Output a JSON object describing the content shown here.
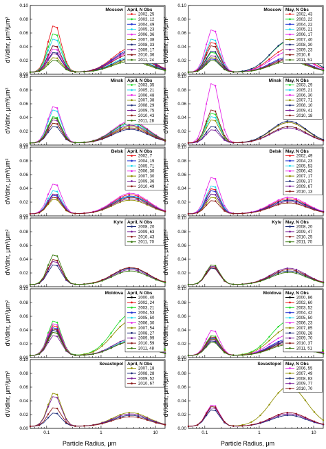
{
  "axes": {
    "ylabel": "dV/dlnr, μm³/μm²",
    "xlabel": "Particle Radius, μm",
    "xticks": [
      "0.1",
      "1",
      "10"
    ],
    "yticks": [
      "0.00",
      "0.02",
      "0.04",
      "0.06",
      "0.08",
      "0.10"
    ]
  },
  "colors": {
    "2000": "#000000",
    "2002": "#e8161b",
    "2003": "#1fdb2a",
    "2004": "#1f2fd1",
    "2005": "#1fd8ec",
    "2006": "#e628e8",
    "2007": "#8f8f00",
    "2008": "#1c2a78",
    "2009": "#7a1e96",
    "2010": "#8b1a1a",
    "2011": "#3a7a10"
  },
  "chart_data": [
    {
      "type": "line",
      "city": "Moscow",
      "legend_title": "April, N Obs",
      "xscale": "log",
      "xlim": [
        0.05,
        15
      ],
      "ylim": [
        0,
        0.1
      ],
      "series": [
        {
          "name": "2002, 25",
          "peak_fine": 0.07,
          "peak_coarse": 0.035
        },
        {
          "name": "2003, 12",
          "peak_fine": 0.058,
          "peak_coarse": 0.03
        },
        {
          "name": "2004, 49",
          "peak_fine": 0.04,
          "peak_coarse": 0.032
        },
        {
          "name": "2005, 23",
          "peak_fine": 0.05,
          "peak_coarse": 0.022
        },
        {
          "name": "2006, 36",
          "peak_fine": 0.035,
          "peak_coarse": 0.028
        },
        {
          "name": "2007, 38",
          "peak_fine": 0.022,
          "peak_coarse": 0.018
        },
        {
          "name": "2008, 33",
          "peak_fine": 0.03,
          "peak_coarse": 0.02
        },
        {
          "name": "2009, 17",
          "peak_fine": 0.028,
          "peak_coarse": 0.03
        },
        {
          "name": "2010, 36",
          "peak_fine": 0.04,
          "peak_coarse": 0.026
        },
        {
          "name": "2011, 24",
          "peak_fine": 0.018,
          "peak_coarse": 0.016
        }
      ]
    },
    {
      "type": "line",
      "city": "Moscow",
      "legend_title": "May, N Obs",
      "xscale": "log",
      "xlim": [
        0.05,
        15
      ],
      "ylim": [
        0,
        0.1
      ],
      "series": [
        {
          "name": "2002, 43",
          "peak_fine": 0.045,
          "peak_coarse": 0.035
        },
        {
          "name": "2003, 22",
          "peak_fine": 0.03,
          "peak_coarse": 0.045
        },
        {
          "name": "2004, 22",
          "peak_fine": 0.02,
          "peak_coarse": 0.022
        },
        {
          "name": "2005, 21",
          "peak_fine": 0.05,
          "peak_coarse": 0.02
        },
        {
          "name": "2006, 17",
          "peak_fine": 0.064,
          "peak_coarse": 0.03
        },
        {
          "name": "2007, 40",
          "peak_fine": 0.022,
          "peak_coarse": 0.02
        },
        {
          "name": "2008, 30",
          "peak_fine": 0.032,
          "peak_coarse": 0.046
        },
        {
          "name": "2009, 23",
          "peak_fine": 0.025,
          "peak_coarse": 0.02
        },
        {
          "name": "2010, 6",
          "peak_fine": 0.04,
          "peak_coarse": 0.018
        },
        {
          "name": "2011, 51",
          "peak_fine": 0.018,
          "peak_coarse": 0.016
        }
      ]
    },
    {
      "type": "line",
      "city": "Minsk",
      "legend_title": "April, N Obs",
      "xscale": "log",
      "xlim": [
        0.05,
        15
      ],
      "ylim": [
        0,
        0.1
      ],
      "series": [
        {
          "name": "2003, 35",
          "peak_fine": 0.04,
          "peak_coarse": 0.03
        },
        {
          "name": "2005, 21",
          "peak_fine": 0.05,
          "peak_coarse": 0.028
        },
        {
          "name": "2006, 48",
          "peak_fine": 0.055,
          "peak_coarse": 0.032
        },
        {
          "name": "2007, 38",
          "peak_fine": 0.03,
          "peak_coarse": 0.024
        },
        {
          "name": "2008, 29",
          "peak_fine": 0.025,
          "peak_coarse": 0.02
        },
        {
          "name": "2009, 75",
          "peak_fine": 0.035,
          "peak_coarse": 0.026
        },
        {
          "name": "2010, 43",
          "peak_fine": 0.03,
          "peak_coarse": 0.022
        },
        {
          "name": "2011, 28",
          "peak_fine": 0.038,
          "peak_coarse": 0.03
        }
      ]
    },
    {
      "type": "line",
      "city": "Minsk",
      "legend_title": "May, N Obs",
      "xscale": "log",
      "xlim": [
        0.05,
        15
      ],
      "ylim": [
        0,
        0.1
      ],
      "series": [
        {
          "name": "2003, 29",
          "peak_fine": 0.045,
          "peak_coarse": 0.03
        },
        {
          "name": "2005, 21",
          "peak_fine": 0.04,
          "peak_coarse": 0.024
        },
        {
          "name": "2006, 30",
          "peak_fine": 0.09,
          "peak_coarse": 0.03
        },
        {
          "name": "2007, 71",
          "peak_fine": 0.035,
          "peak_coarse": 0.03
        },
        {
          "name": "2008, 10",
          "peak_fine": 0.025,
          "peak_coarse": 0.032
        },
        {
          "name": "2009, 41",
          "peak_fine": 0.02,
          "peak_coarse": 0.022
        },
        {
          "name": "2010, 18",
          "peak_fine": 0.05,
          "peak_coarse": 0.024
        }
      ]
    },
    {
      "type": "line",
      "city": "Belsk",
      "legend_title": "April, N Obs",
      "xscale": "log",
      "xlim": [
        0.05,
        15
      ],
      "ylim": [
        0,
        0.1
      ],
      "series": [
        {
          "name": "2002, 7",
          "peak_fine": 0.03,
          "peak_coarse": 0.028
        },
        {
          "name": "2004, 19",
          "peak_fine": 0.028,
          "peak_coarse": 0.026
        },
        {
          "name": "2005, 71",
          "peak_fine": 0.035,
          "peak_coarse": 0.025
        },
        {
          "name": "2006, 30",
          "peak_fine": 0.045,
          "peak_coarse": 0.03
        },
        {
          "name": "2007, 30",
          "peak_fine": 0.022,
          "peak_coarse": 0.02
        },
        {
          "name": "2009, 36",
          "peak_fine": 0.03,
          "peak_coarse": 0.022
        },
        {
          "name": "2010, 49",
          "peak_fine": 0.025,
          "peak_coarse": 0.024
        }
      ]
    },
    {
      "type": "line",
      "city": "Belsk",
      "legend_title": "May, N Obs",
      "xscale": "log",
      "xlim": [
        0.05,
        15
      ],
      "ylim": [
        0,
        0.1
      ],
      "series": [
        {
          "name": "2002, 49",
          "peak_fine": 0.038,
          "peak_coarse": 0.022
        },
        {
          "name": "2004, 23",
          "peak_fine": 0.035,
          "peak_coarse": 0.02
        },
        {
          "name": "2005, 53",
          "peak_fine": 0.042,
          "peak_coarse": 0.02
        },
        {
          "name": "2006, 43",
          "peak_fine": 0.055,
          "peak_coarse": 0.024
        },
        {
          "name": "2007, 17",
          "peak_fine": 0.025,
          "peak_coarse": 0.016
        },
        {
          "name": "2008, 37",
          "peak_fine": 0.03,
          "peak_coarse": 0.02
        },
        {
          "name": "2009, 67",
          "peak_fine": 0.03,
          "peak_coarse": 0.018
        },
        {
          "name": "2010, 13",
          "peak_fine": 0.02,
          "peak_coarse": 0.016
        }
      ]
    },
    {
      "type": "line",
      "city": "Kyiv",
      "legend_title": "April, N Obs",
      "xscale": "log",
      "xlim": [
        0.05,
        15
      ],
      "ylim": [
        0,
        0.1
      ],
      "series": [
        {
          "name": "2008, 20",
          "peak_fine": 0.03,
          "peak_coarse": 0.024
        },
        {
          "name": "2009, 63",
          "peak_fine": 0.035,
          "peak_coarse": 0.022
        },
        {
          "name": "2010, 43",
          "peak_fine": 0.038,
          "peak_coarse": 0.025
        },
        {
          "name": "2011, 70",
          "peak_fine": 0.045,
          "peak_coarse": 0.02
        }
      ]
    },
    {
      "type": "line",
      "city": "Kyiv",
      "legend_title": "May, N Obs",
      "xscale": "log",
      "xlim": [
        0.05,
        15
      ],
      "ylim": [
        0,
        0.1
      ],
      "series": [
        {
          "name": "2008, 20",
          "peak_fine": 0.025,
          "peak_coarse": 0.02
        },
        {
          "name": "2009, 47",
          "peak_fine": 0.028,
          "peak_coarse": 0.024
        },
        {
          "name": "2010, 25",
          "peak_fine": 0.026,
          "peak_coarse": 0.022
        },
        {
          "name": "2011, 70",
          "peak_fine": 0.03,
          "peak_coarse": 0.018
        }
      ]
    },
    {
      "type": "line",
      "city": "Moldova",
      "legend_title": "April, N Obs",
      "xscale": "log",
      "xlim": [
        0.05,
        15
      ],
      "ylim": [
        0,
        0.1
      ],
      "series": [
        {
          "name": "2000, 40",
          "peak_fine": 0.04,
          "peak_coarse": 0.02
        },
        {
          "name": "2002, 24",
          "peak_fine": 0.045,
          "peak_coarse": 0.022
        },
        {
          "name": "2003, 21",
          "peak_fine": 0.052,
          "peak_coarse": 0.06
        },
        {
          "name": "2004, 53",
          "peak_fine": 0.042,
          "peak_coarse": 0.02
        },
        {
          "name": "2005, 50",
          "peak_fine": 0.04,
          "peak_coarse": 0.022
        },
        {
          "name": "2006, 30",
          "peak_fine": 0.048,
          "peak_coarse": 0.02
        },
        {
          "name": "2007, 54",
          "peak_fine": 0.035,
          "peak_coarse": 0.05
        },
        {
          "name": "2008, 27",
          "peak_fine": 0.038,
          "peak_coarse": 0.02
        },
        {
          "name": "2009, 99",
          "peak_fine": 0.03,
          "peak_coarse": 0.024
        },
        {
          "name": "2010, 59",
          "peak_fine": 0.04,
          "peak_coarse": 0.02
        },
        {
          "name": "2011, 48",
          "peak_fine": 0.035,
          "peak_coarse": 0.02
        }
      ]
    },
    {
      "type": "line",
      "city": "Moldova",
      "legend_title": "May, N Obs",
      "xscale": "log",
      "xlim": [
        0.05,
        15
      ],
      "ylim": [
        0,
        0.1
      ],
      "series": [
        {
          "name": "2000, 86",
          "peak_fine": 0.028,
          "peak_coarse": 0.02
        },
        {
          "name": "2002, 60",
          "peak_fine": 0.03,
          "peak_coarse": 0.022
        },
        {
          "name": "2003, 52",
          "peak_fine": 0.03,
          "peak_coarse": 0.05
        },
        {
          "name": "2004, 42",
          "peak_fine": 0.026,
          "peak_coarse": 0.024
        },
        {
          "name": "2005, 50",
          "peak_fine": 0.025,
          "peak_coarse": 0.022
        },
        {
          "name": "2006, 23",
          "peak_fine": 0.038,
          "peak_coarse": 0.03
        },
        {
          "name": "2007, 85",
          "peak_fine": 0.025,
          "peak_coarse": 0.04
        },
        {
          "name": "2008, 28",
          "peak_fine": 0.022,
          "peak_coarse": 0.02
        },
        {
          "name": "2009, 70",
          "peak_fine": 0.024,
          "peak_coarse": 0.022
        },
        {
          "name": "2010, 37",
          "peak_fine": 0.028,
          "peak_coarse": 0.018
        },
        {
          "name": "2011, 51",
          "peak_fine": 0.02,
          "peak_coarse": 0.016
        }
      ]
    },
    {
      "type": "line",
      "city": "Sevastopol",
      "legend_title": "April, N Obs",
      "xscale": "log",
      "xlim": [
        0.05,
        15
      ],
      "ylim": [
        0,
        0.1
      ],
      "series": [
        {
          "name": "2007, 18",
          "peak_fine": 0.05,
          "peak_coarse": 0.02
        },
        {
          "name": "2008, 28",
          "peak_fine": 0.02,
          "peak_coarse": 0.016
        },
        {
          "name": "2009, 52",
          "peak_fine": 0.045,
          "peak_coarse": 0.018
        },
        {
          "name": "2010, 67",
          "peak_fine": 0.028,
          "peak_coarse": 0.014
        }
      ]
    },
    {
      "type": "line",
      "city": "Sevastopol",
      "legend_title": "May, N Obs",
      "xscale": "log",
      "xlim": [
        0.05,
        15
      ],
      "ylim": [
        0,
        0.1
      ],
      "series": [
        {
          "name": "2006, 55",
          "peak_fine": 0.032,
          "peak_coarse": 0.02
        },
        {
          "name": "2007, 49",
          "peak_fine": 0.03,
          "peak_coarse": 0.058
        },
        {
          "name": "2008, 83",
          "peak_fine": 0.025,
          "peak_coarse": 0.016
        },
        {
          "name": "2009, 77",
          "peak_fine": 0.028,
          "peak_coarse": 0.018
        },
        {
          "name": "2010, 70",
          "peak_fine": 0.03,
          "peak_coarse": 0.02
        }
      ]
    }
  ]
}
